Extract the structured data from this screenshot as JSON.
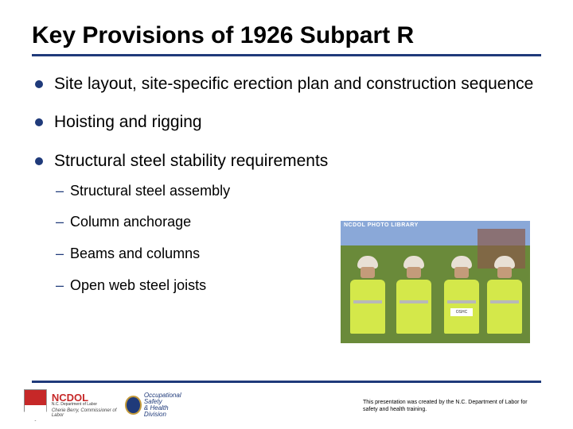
{
  "title": "Key Provisions of 1926 Subpart R",
  "bullets": [
    {
      "text": "Site layout, site-specific erection plan and construction sequence"
    },
    {
      "text": "Hoisting and rigging"
    },
    {
      "text": "Structural steel stability requirements",
      "sub": [
        "Structural steel assembly",
        "Column anchorage",
        "Beams and columns",
        "Open web steel joists"
      ]
    }
  ],
  "photo": {
    "label": "NCDOL PHOTO LIBRARY",
    "vest_tag": "OSHC"
  },
  "logo": {
    "ncdol": "NCDOL",
    "dept": "N.C. Department of Labor",
    "sig": "Cherie Berry, Commissioner of Labor",
    "osh1": "Occupational Safety",
    "osh2": "& Health Division"
  },
  "credit": "This presentation was created by the N.C. Department of Labor for safety and health training.",
  "colors": {
    "accent": "#1f3a7a",
    "red": "#c62828",
    "vest": "#d4e84a"
  }
}
